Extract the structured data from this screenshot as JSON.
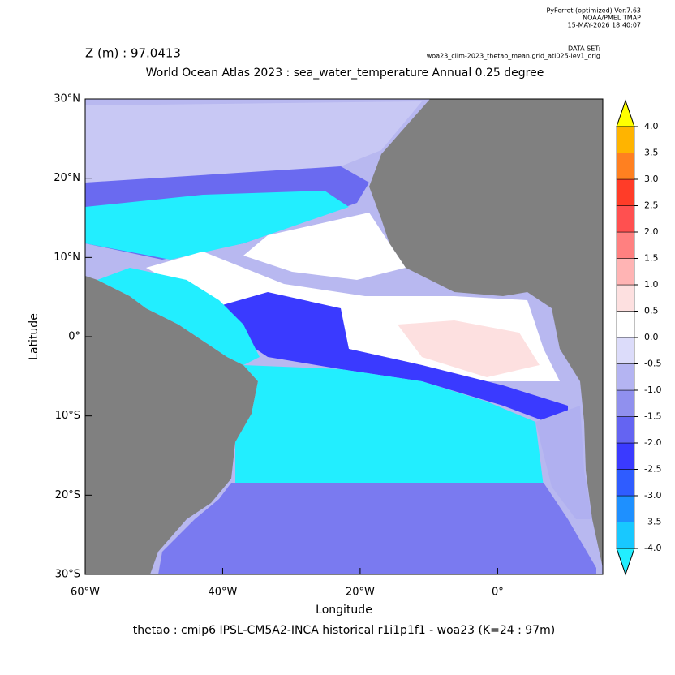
{
  "header": {
    "software": "PyFerret (optimized) Ver.7.63",
    "org": "NOAA/PMEL TMAP",
    "timestamp": "15-MAY-2026 18:40:07",
    "dataset_label": "DATA SET:",
    "dataset": "woa23_clim-2023_thetao_mean.grid_atl025-lev1_orig",
    "depth": "Z (m) : 97.0413"
  },
  "chart_data": {
    "type": "map",
    "title": "World Ocean Atlas 2023 : sea_water_temperature Annual  0.25 degree",
    "x_label": "Longitude",
    "y_label": "Latitude",
    "footer": "thetao : cmip6 IPSL-CM5A2-INCA historical r1i1p1f1 - woa23  (K=24 : 97m)",
    "land_color": "#808080",
    "xlim": [
      -60,
      15.3
    ],
    "ylim": [
      -30,
      30
    ],
    "xticks": [
      {
        "value": -60,
        "label": "60°W"
      },
      {
        "value": -40,
        "label": "40°W"
      },
      {
        "value": -20,
        "label": "20°W"
      },
      {
        "value": 0,
        "label": "0°"
      }
    ],
    "yticks": [
      {
        "value": 30,
        "label": "30°N"
      },
      {
        "value": 20,
        "label": "20°N"
      },
      {
        "value": 10,
        "label": "10°N"
      },
      {
        "value": 0,
        "label": "0°"
      },
      {
        "value": -10,
        "label": "10°S"
      },
      {
        "value": -20,
        "label": "20°S"
      },
      {
        "value": -30,
        "label": "30°S"
      }
    ],
    "colorbar": {
      "levels": [
        {
          "value": -4,
          "label": "-4.0"
        },
        {
          "value": -3.5,
          "label": "-3.5"
        },
        {
          "value": -3,
          "label": "-3.0"
        },
        {
          "value": -2.5,
          "label": "-2.5"
        },
        {
          "value": -2,
          "label": "-2.0"
        },
        {
          "value": -1.5,
          "label": "-1.5"
        },
        {
          "value": -1,
          "label": "-1.0"
        },
        {
          "value": -0.5,
          "label": "-0.5"
        },
        {
          "value": 0,
          "label": "0.0"
        },
        {
          "value": 0.5,
          "label": "0.5"
        },
        {
          "value": 1,
          "label": "1.0"
        },
        {
          "value": 1.5,
          "label": "1.5"
        },
        {
          "value": 2,
          "label": "2.0"
        },
        {
          "value": 2.5,
          "label": "2.5"
        },
        {
          "value": 3,
          "label": "3.0"
        },
        {
          "value": 3.5,
          "label": "3.5"
        },
        {
          "value": 4,
          "label": "4.0"
        }
      ],
      "colors": [
        "#22eeff",
        "#18c8ff",
        "#1e90ff",
        "#2f5cff",
        "#3a3aff",
        "#6464f2",
        "#9090ee",
        "#b4b4f2",
        "#dcdcfa",
        "#ffffff",
        "#fde0e0",
        "#ffb4b4",
        "#ff8080",
        "#ff5050",
        "#ff3c28",
        "#ff8020",
        "#ffb400",
        "#ffff00"
      ]
    }
  }
}
